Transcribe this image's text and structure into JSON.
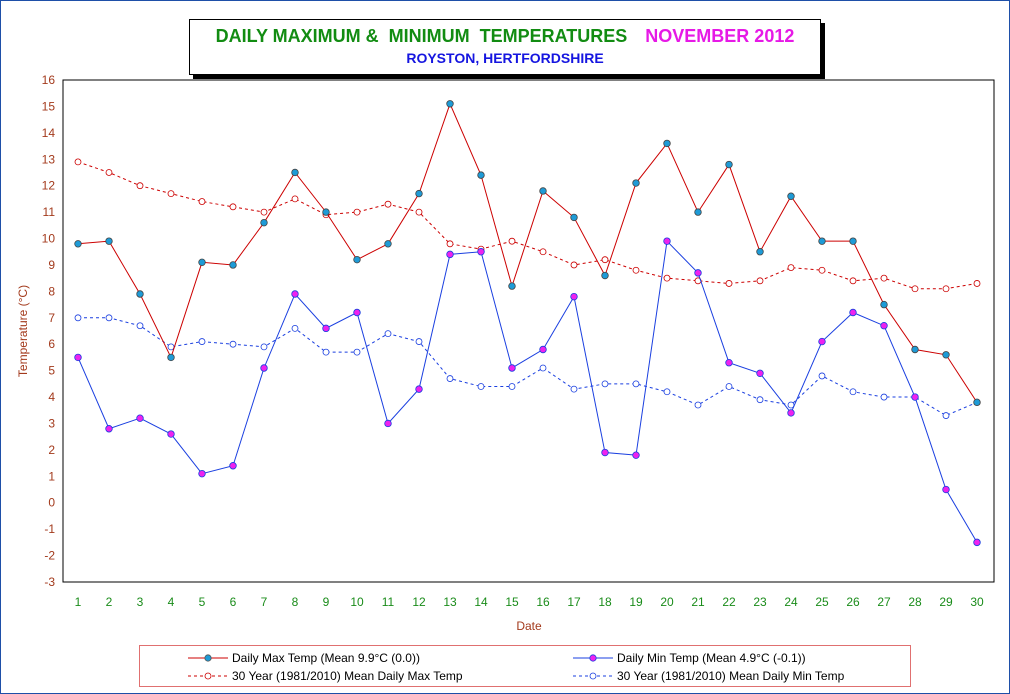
{
  "title": {
    "main": "DAILY MAXIMUM &  MINIMUM  TEMPERATURES",
    "month": "NOVEMBER 2012",
    "subtitle": "ROYSTON, HERTFORDSHIRE"
  },
  "colors": {
    "title_main": "#128c12",
    "title_month": "#e619e6",
    "subtitle": "#1515e0",
    "max_line": "#cc0000",
    "min_line": "#1a3fe0",
    "marker_max_fill": "#1e9bd7",
    "marker_min_fill": "#ee22ee",
    "axis_text": "#a33a1c",
    "tick_x": "#1a8c1a"
  },
  "chart_data": {
    "type": "line",
    "xlabel": "Date",
    "ylabel": "Temperature (°C)",
    "ylim": [
      -3,
      16
    ],
    "xlim": [
      1,
      30
    ],
    "grid": true,
    "legend_position": "bottom",
    "x": [
      1,
      2,
      3,
      4,
      5,
      6,
      7,
      8,
      9,
      10,
      11,
      12,
      13,
      14,
      15,
      16,
      17,
      18,
      19,
      20,
      21,
      22,
      23,
      24,
      25,
      26,
      27,
      28,
      29,
      30
    ],
    "series": [
      {
        "name": "Daily Max Temp (Mean 9.9°C (0.0))",
        "values": [
          9.8,
          9.9,
          7.9,
          5.5,
          9.1,
          9.0,
          10.6,
          12.5,
          11.0,
          9.2,
          9.8,
          11.7,
          15.1,
          12.4,
          8.2,
          11.8,
          10.8,
          8.6,
          12.1,
          13.6,
          11.0,
          12.8,
          9.5,
          11.6,
          9.9,
          9.9,
          7.5,
          5.8,
          5.6,
          3.8
        ]
      },
      {
        "name": "Daily Min Temp (Mean 4.9°C (-0.1))",
        "values": [
          5.5,
          2.8,
          3.2,
          2.6,
          1.1,
          1.4,
          5.1,
          7.9,
          6.6,
          7.2,
          3.0,
          4.3,
          9.4,
          9.5,
          5.1,
          5.8,
          7.8,
          1.9,
          1.8,
          9.9,
          8.7,
          5.3,
          4.9,
          3.4,
          6.1,
          7.2,
          6.7,
          4.0,
          0.5,
          -1.5
        ]
      },
      {
        "name": "30 Year (1981/2010) Mean Daily Max Temp",
        "values": [
          12.9,
          12.5,
          12.0,
          11.7,
          11.4,
          11.2,
          11.0,
          11.5,
          10.9,
          11.0,
          11.3,
          11.0,
          9.8,
          9.6,
          9.9,
          9.5,
          9.0,
          9.2,
          8.8,
          8.5,
          8.4,
          8.3,
          8.4,
          8.9,
          8.8,
          8.4,
          8.5,
          8.1,
          8.1,
          8.3
        ]
      },
      {
        "name": "30 Year (1981/2010) Mean Daily Min Temp",
        "values": [
          7.0,
          7.0,
          6.7,
          5.9,
          6.1,
          6.0,
          5.9,
          6.6,
          5.7,
          5.7,
          6.4,
          6.1,
          4.7,
          4.4,
          4.4,
          5.1,
          4.3,
          4.5,
          4.5,
          4.2,
          3.7,
          4.4,
          3.9,
          3.7,
          4.8,
          4.2,
          4.0,
          4.0,
          3.3,
          3.8
        ]
      }
    ]
  }
}
